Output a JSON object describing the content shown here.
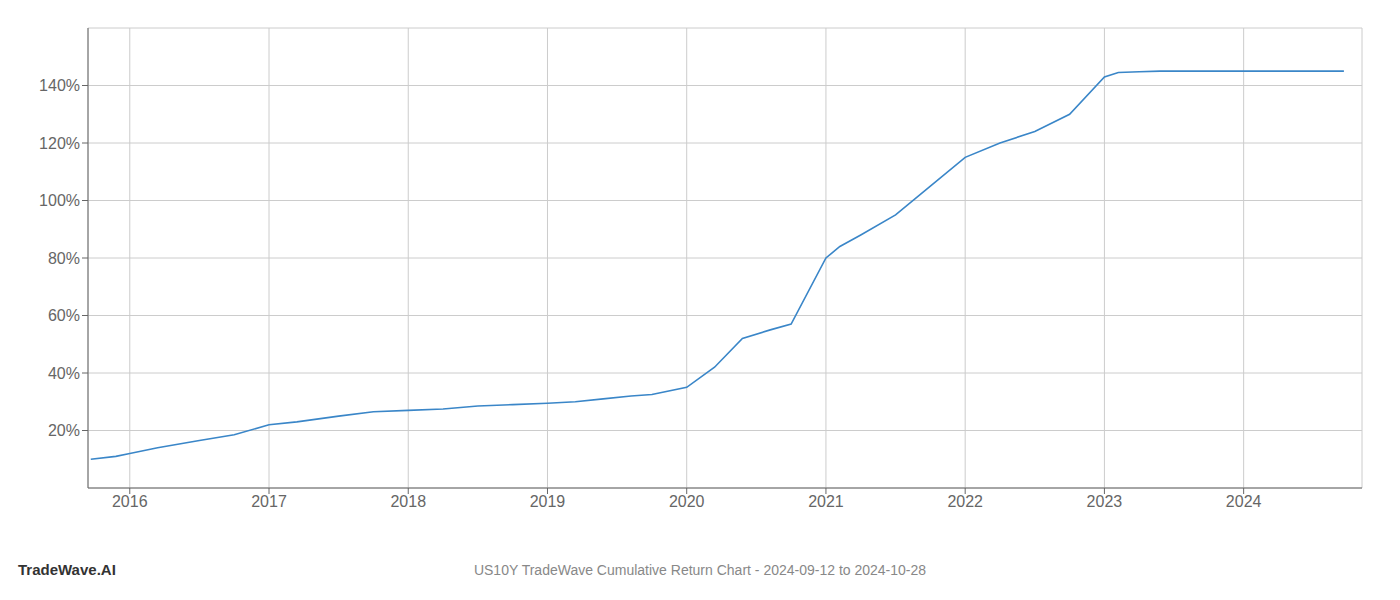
{
  "chart_data": {
    "type": "line",
    "title": "US10Y TradeWave Cumulative Return Chart - 2024-09-12 to 2024-10-28",
    "annotations": [
      "TradeWave.AI"
    ],
    "color": "#3a86c8",
    "x": [
      2015.72,
      2015.9,
      2016.0,
      2016.2,
      2016.5,
      2016.75,
      2017.0,
      2017.2,
      2017.5,
      2017.75,
      2018.0,
      2018.25,
      2018.5,
      2018.75,
      2019.0,
      2019.2,
      2019.4,
      2019.6,
      2019.75,
      2020.0,
      2020.2,
      2020.4,
      2020.6,
      2020.75,
      2021.0,
      2021.1,
      2021.25,
      2021.5,
      2021.75,
      2022.0,
      2022.25,
      2022.5,
      2022.75,
      2023.0,
      2023.1,
      2023.25,
      2023.4,
      2023.6,
      2023.75,
      2024.0,
      2024.5,
      2024.72
    ],
    "values": [
      10.0,
      11.0,
      12.0,
      14.0,
      16.5,
      18.5,
      22.0,
      23.0,
      25.0,
      26.5,
      27.0,
      27.5,
      28.5,
      29.0,
      29.5,
      30.0,
      31.0,
      32.0,
      32.5,
      35.0,
      42.0,
      52.0,
      55.0,
      57.0,
      80.0,
      84.0,
      88.0,
      95.0,
      105.0,
      115.0,
      120.0,
      124.0,
      130.0,
      143.0,
      144.5,
      144.8,
      145.0,
      145.0,
      145.0,
      145.0,
      145.0,
      145.0
    ],
    "xlim": [
      2015.7,
      2024.85
    ],
    "ylim": [
      0,
      160
    ],
    "xticks": [
      2016,
      2017,
      2018,
      2019,
      2020,
      2021,
      2022,
      2023,
      2024
    ],
    "yticks": [
      {
        "value": 20,
        "label": "20%"
      },
      {
        "value": 40,
        "label": "40%"
      },
      {
        "value": 60,
        "label": "60%"
      },
      {
        "value": 80,
        "label": "80%"
      },
      {
        "value": 100,
        "label": "100%"
      },
      {
        "value": 120,
        "label": "120%"
      },
      {
        "value": 140,
        "label": "140%"
      }
    ],
    "grid": true
  }
}
